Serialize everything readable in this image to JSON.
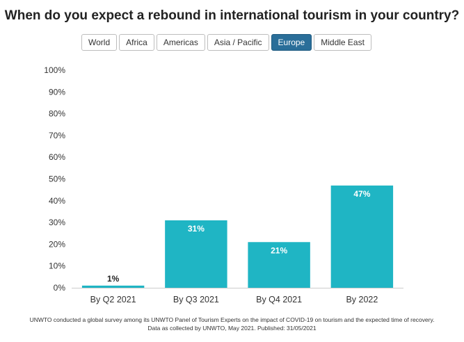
{
  "title": "When do you expect a rebound in international tourism in your country?",
  "tabs": [
    {
      "label": "World",
      "active": false
    },
    {
      "label": "Africa",
      "active": false
    },
    {
      "label": "Americas",
      "active": false
    },
    {
      "label": "Asia / Pacific",
      "active": false
    },
    {
      "label": "Europe",
      "active": true
    },
    {
      "label": "Middle East",
      "active": false
    }
  ],
  "footnote": {
    "line1": "UNWTO conducted a global survey among its UNWTO Panel of Tourism Experts on the impact of COVID-19 on tourism and the expected time of recovery.",
    "line2": "Data as collected by UNWTO, May 2021. Published: 31/05/2021"
  },
  "colors": {
    "bar": "#1fb5c4",
    "active_tab": "#2a6e99"
  },
  "chart_data": {
    "type": "bar",
    "categories": [
      "By Q2 2021",
      "By Q3 2021",
      "By Q4 2021",
      "By 2022"
    ],
    "values": [
      1,
      31,
      21,
      47
    ],
    "data_labels": [
      "1%",
      "31%",
      "21%",
      "47%"
    ],
    "y_ticks": [
      "0%",
      "10%",
      "20%",
      "30%",
      "40%",
      "50%",
      "60%",
      "70%",
      "80%",
      "90%",
      "100%"
    ],
    "ylim": [
      0,
      100
    ],
    "grid": false,
    "legend": "none"
  }
}
